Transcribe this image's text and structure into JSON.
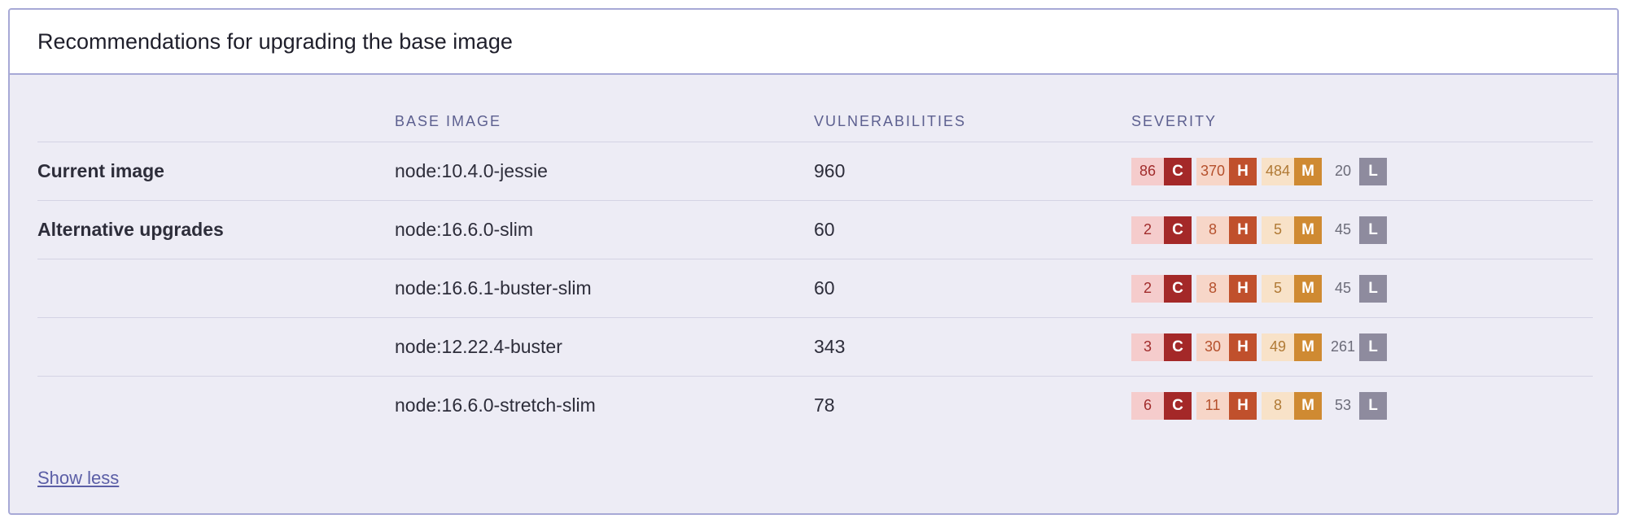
{
  "title": "Recommendations for upgrading the base image",
  "headers": {
    "label": "",
    "base_image": "BASE IMAGE",
    "vulnerabilities": "VULNERABILITIES",
    "severity": "SEVERITY"
  },
  "severity_letters": {
    "critical": "C",
    "high": "H",
    "medium": "M",
    "low": "L"
  },
  "rows": [
    {
      "label": "Current image",
      "image": "node:10.4.0-jessie",
      "vulns": "960",
      "sev": {
        "critical": "86",
        "high": "370",
        "medium": "484",
        "low": "20"
      }
    },
    {
      "label": "Alternative upgrades",
      "image": "node:16.6.0-slim",
      "vulns": "60",
      "sev": {
        "critical": "2",
        "high": "8",
        "medium": "5",
        "low": "45"
      }
    },
    {
      "label": "",
      "image": "node:16.6.1-buster-slim",
      "vulns": "60",
      "sev": {
        "critical": "2",
        "high": "8",
        "medium": "5",
        "low": "45"
      }
    },
    {
      "label": "",
      "image": "node:12.22.4-buster",
      "vulns": "343",
      "sev": {
        "critical": "3",
        "high": "30",
        "medium": "49",
        "low": "261"
      }
    },
    {
      "label": "",
      "image": "node:16.6.0-stretch-slim",
      "vulns": "78",
      "sev": {
        "critical": "6",
        "high": "11",
        "medium": "8",
        "low": "53"
      }
    }
  ],
  "show_less_label": "Show less",
  "colors": {
    "critical": "#a42828",
    "high": "#c0502c",
    "medium": "#cf8a32",
    "low": "#8e8b9e",
    "accent": "#5b5ea6",
    "panel_bg": "#edecf5"
  }
}
